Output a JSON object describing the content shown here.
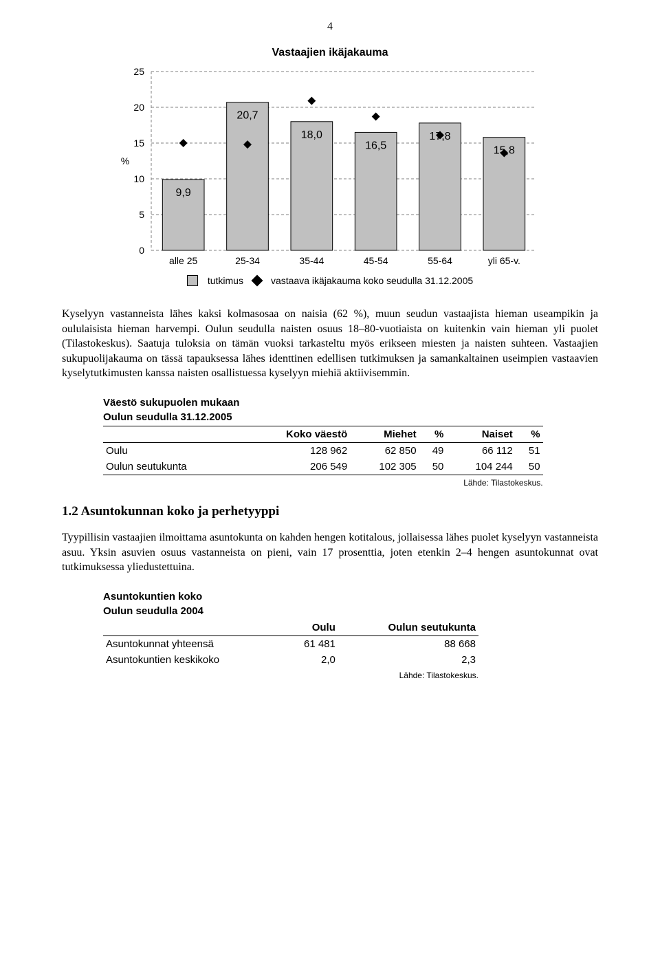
{
  "page_number": "4",
  "chart": {
    "type": "bar-with-markers",
    "title": "Vastaajien ikäjakauma",
    "y_axis_label": "%",
    "categories": [
      "alle 25",
      "25-34",
      "35-44",
      "45-54",
      "55-64",
      "yli 65-v."
    ],
    "bar_values": [
      9.9,
      20.7,
      18.0,
      16.5,
      17.8,
      15.8
    ],
    "bar_labels": [
      "9,9",
      "20,7",
      "18,0",
      "16,5",
      "17,8",
      "15,8"
    ],
    "marker_values": [
      15.0,
      14.8,
      20.9,
      18.7,
      16.1,
      13.6
    ],
    "ylim": [
      0,
      25
    ],
    "ytick_step": 5,
    "yticks": [
      "0",
      "5",
      "10",
      "15",
      "20",
      "25"
    ],
    "bar_fill": "#c0c0c0",
    "bar_stroke": "#000000",
    "marker_fill": "#000000",
    "grid_color": "#808080",
    "label_fontsize": 14,
    "bar_width": 0.65,
    "background_color": "#ffffff",
    "legend": {
      "box_label": "tutkimus",
      "marker_label": "vastaava ikäjakauma koko seudulla 31.12.2005",
      "box_fill": "#c0c0c0",
      "marker_fill": "#000000"
    }
  },
  "para1": "Kyselyyn vastanneista lähes kaksi kolmasosaa on naisia (62 %), muun seudun vastaajista hieman useampikin ja oululaisista hieman harvempi. Oulun seudulla naisten osuus 18–80-vuotiaista on kuitenkin vain hieman yli puolet (Tilastokeskus). Saatuja tuloksia on tämän vuoksi tarkasteltu myös erikseen miesten ja naisten suhteen. Vastaajien sukupuolijakauma on tässä tapauksessa lähes identtinen edellisen tutkimuksen ja samankaltainen useimpien vastaavien kyselytutkimusten kanssa naisten osallistuessa kyselyyn miehiä aktiivisemmin.",
  "table1": {
    "title_line1": "Väestö sukupuolen mukaan",
    "title_line2": "Oulun seudulla 31.12.2005",
    "columns": [
      "",
      "Koko väestö",
      "Miehet",
      "%",
      "Naiset",
      "%"
    ],
    "rows": [
      [
        "Oulu",
        "128 962",
        "62 850",
        "49",
        "66 112",
        "51"
      ],
      [
        "Oulun seutukunta",
        "206 549",
        "102 305",
        "50",
        "104 244",
        "50"
      ]
    ],
    "source": "Lähde: Tilastokeskus."
  },
  "section_heading": "1.2  Asuntokunnan koko ja perhetyyppi",
  "para2": "Tyypillisin vastaajien ilmoittama asuntokunta on kahden hengen kotitalous, jollaisessa lähes puolet kyselyyn vastanneista asuu. Yksin asuvien osuus vastanneista on pieni, vain 17 prosenttia, joten etenkin 2–4 hengen asuntokunnat ovat tutkimuksessa yliedustettuina.",
  "table2": {
    "title_line1": "Asuntokuntien koko",
    "title_line2": "Oulun seudulla 2004",
    "columns": [
      "",
      "Oulu",
      "Oulun seutukunta"
    ],
    "rows": [
      [
        "Asuntokunnat yhteensä",
        "61 481",
        "88 668"
      ],
      [
        "Asuntokuntien keskikoko",
        "2,0",
        "2,3"
      ]
    ],
    "source": "Lähde: Tilastokeskus."
  }
}
